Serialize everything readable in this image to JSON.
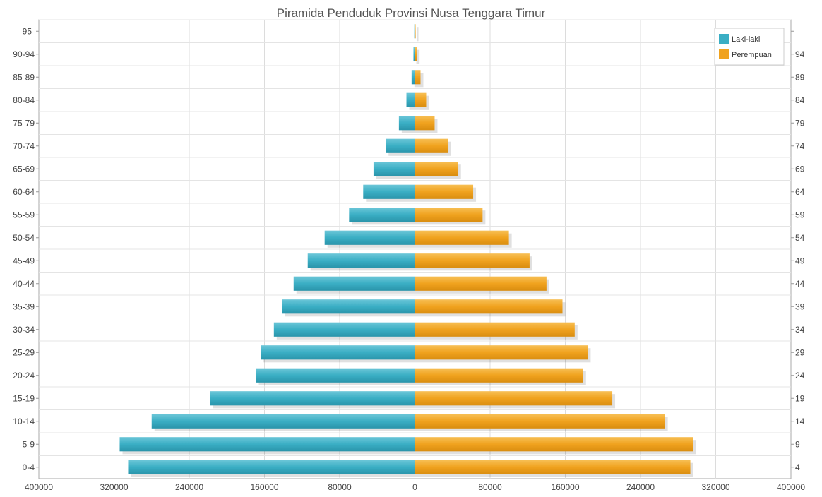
{
  "chart_data": {
    "type": "bar",
    "orientation": "horizontal",
    "title": "Piramida Penduduk Provinsi Nusa Tenggara Timur",
    "categories": [
      "0-4",
      "5-9",
      "10-14",
      "15-19",
      "20-24",
      "25-29",
      "30-34",
      "35-39",
      "40-44",
      "45-49",
      "50-54",
      "55-59",
      "60-64",
      "65-69",
      "70-74",
      "75-79",
      "80-84",
      "85-89",
      "90-94",
      "95-"
    ],
    "right_tick_labels": [
      "4",
      "9",
      "14",
      "19",
      "24",
      "29",
      "34",
      "39",
      "44",
      "49",
      "54",
      "59",
      "64",
      "69",
      "74",
      "79",
      "84",
      "89",
      "94",
      ""
    ],
    "x_tick_labels": [
      "400000",
      "320000",
      "240000",
      "160000",
      "80000",
      "0",
      "80000",
      "160000",
      "240000",
      "320000",
      "400000"
    ],
    "xlim": [
      -400000,
      400000
    ],
    "grid": true,
    "legend_position": "top-right",
    "series": [
      {
        "name": "Laki-laki",
        "color": "#3aaec4",
        "values": [
          305000,
          314000,
          280000,
          218000,
          169000,
          164000,
          150000,
          141000,
          129000,
          114000,
          96000,
          70000,
          55000,
          44000,
          31000,
          17000,
          9000,
          3500,
          1500,
          600
        ]
      },
      {
        "name": "Perempuan",
        "color": "#f0a21e",
        "values": [
          293000,
          296000,
          266000,
          210000,
          179000,
          184000,
          170000,
          157000,
          140000,
          122000,
          100000,
          72000,
          62000,
          46000,
          35000,
          21000,
          12000,
          6000,
          2000,
          800
        ]
      }
    ]
  }
}
